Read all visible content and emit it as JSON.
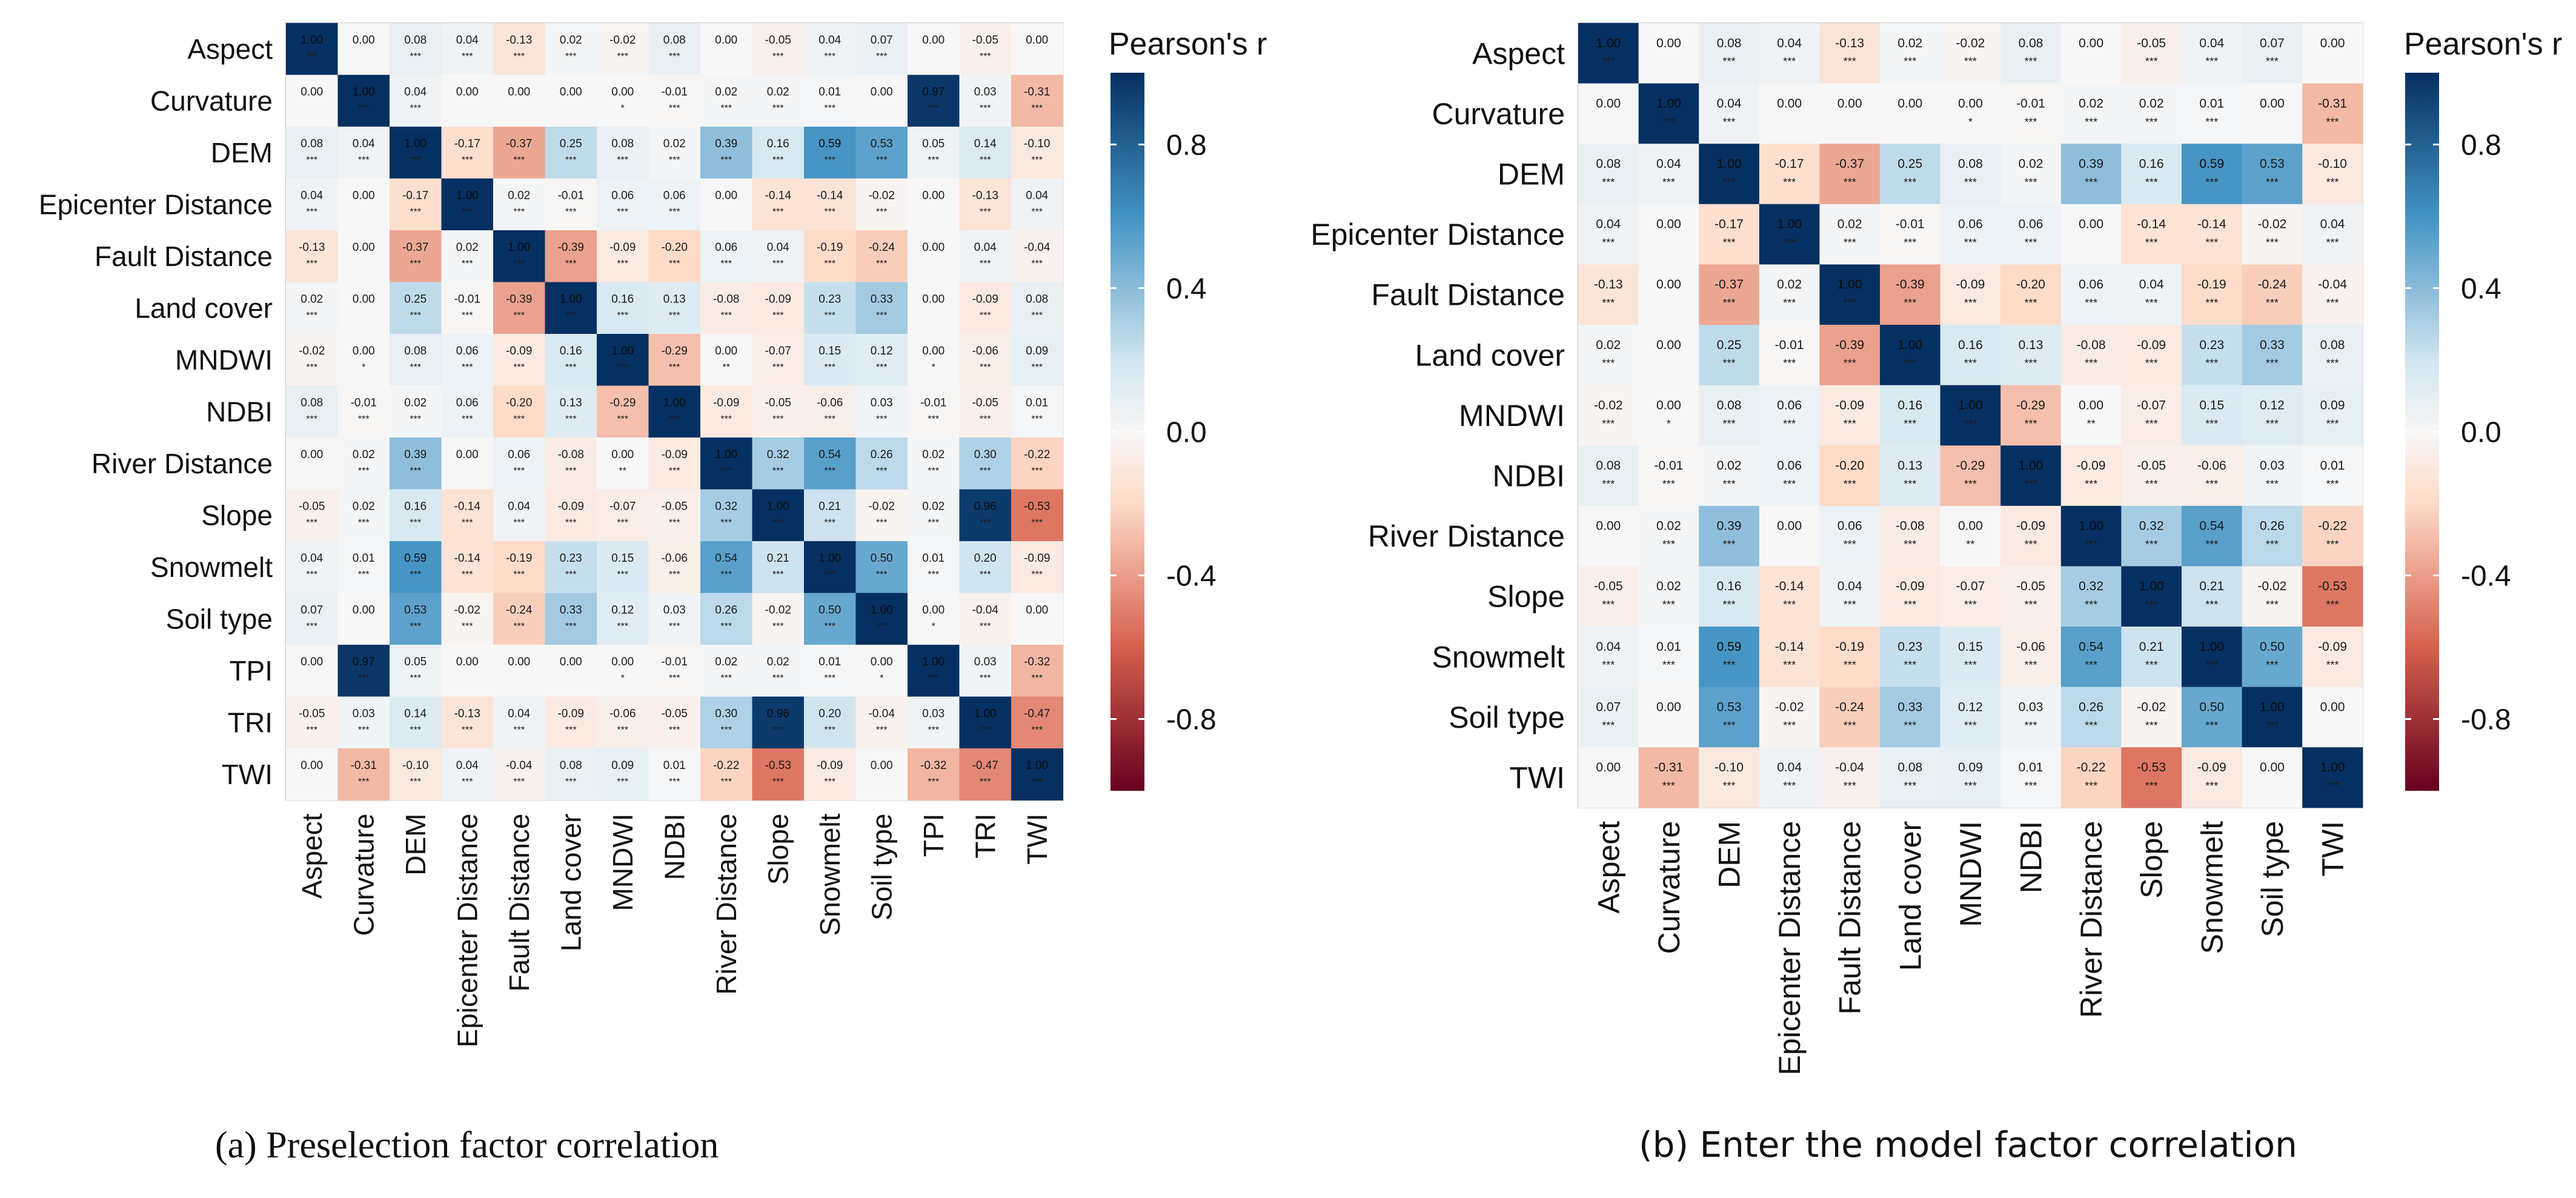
{
  "chart_data": [
    {
      "type": "heatmap",
      "panel": "a",
      "caption": "(a) Preselection factor correlation",
      "variables": [
        "Aspect",
        "Curvature",
        "DEM",
        "Epicenter Distance",
        "Fault Distance",
        "Land cover",
        "MNDWI",
        "NDBI",
        "River Distance",
        "Slope",
        "Snowmelt",
        "Soil type",
        "TPI",
        "TRI",
        "TWI"
      ],
      "values": [
        [
          1.0,
          0.0,
          0.08,
          0.04,
          -0.13,
          0.02,
          -0.02,
          0.08,
          0.0,
          -0.05,
          0.04,
          0.07,
          0.0,
          -0.05,
          0.0
        ],
        [
          0.0,
          1.0,
          0.04,
          0.0,
          0.0,
          0.0,
          0.0,
          -0.01,
          0.02,
          0.02,
          0.01,
          0.0,
          0.97,
          0.03,
          -0.31
        ],
        [
          0.08,
          0.04,
          1.0,
          -0.17,
          -0.37,
          0.25,
          0.08,
          0.02,
          0.39,
          0.16,
          0.59,
          0.53,
          0.05,
          0.14,
          -0.1
        ],
        [
          0.04,
          0.0,
          -0.17,
          1.0,
          0.02,
          -0.01,
          0.06,
          0.06,
          0.0,
          -0.14,
          -0.14,
          -0.02,
          0.0,
          -0.13,
          0.04
        ],
        [
          -0.13,
          0.0,
          -0.37,
          0.02,
          1.0,
          -0.39,
          -0.09,
          -0.2,
          0.06,
          0.04,
          -0.19,
          -0.24,
          0.0,
          0.04,
          -0.04
        ],
        [
          0.02,
          0.0,
          0.25,
          -0.01,
          -0.39,
          1.0,
          0.16,
          0.13,
          -0.08,
          -0.09,
          0.23,
          0.33,
          0.0,
          -0.09,
          0.08
        ],
        [
          -0.02,
          0.0,
          0.08,
          0.06,
          -0.09,
          0.16,
          1.0,
          -0.29,
          0.0,
          -0.07,
          0.15,
          0.12,
          0.0,
          -0.06,
          0.09
        ],
        [
          0.08,
          -0.01,
          0.02,
          0.06,
          -0.2,
          0.13,
          -0.29,
          1.0,
          -0.09,
          -0.05,
          -0.06,
          0.03,
          -0.01,
          -0.05,
          0.01
        ],
        [
          0.0,
          0.02,
          0.39,
          0.0,
          0.06,
          -0.08,
          0.0,
          -0.09,
          1.0,
          0.32,
          0.54,
          0.26,
          0.02,
          0.3,
          -0.22
        ],
        [
          -0.05,
          0.02,
          0.16,
          -0.14,
          0.04,
          -0.09,
          -0.07,
          -0.05,
          0.32,
          1.0,
          0.21,
          -0.02,
          0.02,
          0.96,
          -0.53
        ],
        [
          0.04,
          0.01,
          0.59,
          -0.14,
          -0.19,
          0.23,
          0.15,
          -0.06,
          0.54,
          0.21,
          1.0,
          0.5,
          0.01,
          0.2,
          -0.09
        ],
        [
          0.07,
          0.0,
          0.53,
          -0.02,
          -0.24,
          0.33,
          0.12,
          0.03,
          0.26,
          -0.02,
          0.5,
          1.0,
          0.0,
          -0.04,
          0.0
        ],
        [
          0.0,
          0.97,
          0.05,
          0.0,
          0.0,
          0.0,
          0.0,
          -0.01,
          0.02,
          0.02,
          0.01,
          0.0,
          1.0,
          0.03,
          -0.32
        ],
        [
          -0.05,
          0.03,
          0.14,
          -0.13,
          0.04,
          -0.09,
          -0.06,
          -0.05,
          0.3,
          0.96,
          0.2,
          -0.04,
          0.03,
          1.0,
          -0.47
        ],
        [
          0.0,
          -0.31,
          -0.1,
          0.04,
          -0.04,
          0.08,
          0.09,
          0.01,
          -0.22,
          -0.53,
          -0.09,
          0.0,
          -0.32,
          -0.47,
          1.0
        ]
      ],
      "significance": [
        [
          "***",
          "",
          "***",
          "***",
          "***",
          "***",
          "***",
          "***",
          "",
          "***",
          "***",
          "***",
          "",
          "***",
          ""
        ],
        [
          "",
          "***",
          "***",
          "",
          "",
          "",
          "*",
          "***",
          "***",
          "***",
          "***",
          "",
          "***",
          "***",
          "***"
        ],
        [
          "***",
          "***",
          "***",
          "***",
          "***",
          "***",
          "***",
          "***",
          "***",
          "***",
          "***",
          "***",
          "***",
          "***",
          "***"
        ],
        [
          "***",
          "",
          "***",
          "***",
          "***",
          "***",
          "***",
          "***",
          "",
          "***",
          "***",
          "***",
          "",
          "***",
          "***"
        ],
        [
          "***",
          "",
          "***",
          "***",
          "***",
          "***",
          "***",
          "***",
          "***",
          "***",
          "***",
          "***",
          "",
          "***",
          "***"
        ],
        [
          "***",
          "",
          "***",
          "***",
          "***",
          "***",
          "***",
          "***",
          "***",
          "***",
          "***",
          "***",
          "",
          "***",
          "***"
        ],
        [
          "***",
          "*",
          "***",
          "***",
          "***",
          "***",
          "***",
          "***",
          "**",
          "***",
          "***",
          "***",
          "*",
          "***",
          "***"
        ],
        [
          "***",
          "***",
          "***",
          "***",
          "***",
          "***",
          "***",
          "***",
          "***",
          "***",
          "***",
          "***",
          "***",
          "***",
          "***"
        ],
        [
          "",
          "***",
          "***",
          "",
          "***",
          "***",
          "**",
          "***",
          "***",
          "***",
          "***",
          "***",
          "***",
          "***",
          "***"
        ],
        [
          "***",
          "***",
          "***",
          "***",
          "***",
          "***",
          "***",
          "***",
          "***",
          "***",
          "***",
          "***",
          "***",
          "***",
          "***"
        ],
        [
          "***",
          "***",
          "***",
          "***",
          "***",
          "***",
          "***",
          "***",
          "***",
          "***",
          "***",
          "***",
          "***",
          "***",
          "***"
        ],
        [
          "***",
          "",
          "***",
          "***",
          "***",
          "***",
          "***",
          "***",
          "***",
          "***",
          "***",
          "***",
          "*",
          "***",
          ""
        ],
        [
          "",
          "***",
          "***",
          "",
          "",
          "",
          "*",
          "***",
          "***",
          "***",
          "***",
          "*",
          "***",
          "***",
          "***"
        ],
        [
          "***",
          "***",
          "***",
          "***",
          "***",
          "***",
          "***",
          "***",
          "***",
          "***",
          "***",
          "***",
          "***",
          "***",
          "***"
        ],
        [
          "",
          "***",
          "***",
          "***",
          "***",
          "***",
          "***",
          "***",
          "***",
          "***",
          "***",
          "",
          "***",
          "***",
          "***"
        ]
      ],
      "legend_title": "Pearson's r",
      "color_range": [
        -1,
        1
      ],
      "colorbar_ticks": [
        0.8,
        0.4,
        0.0,
        -0.4,
        -0.8
      ],
      "colorbar_tick_labels": [
        "0.8",
        "0.4",
        "0.0",
        "-0.4",
        "-0.8"
      ],
      "legend_position": "right"
    },
    {
      "type": "heatmap",
      "panel": "b",
      "caption": "(b) Enter the model factor correlation",
      "variables": [
        "Aspect",
        "Curvature",
        "DEM",
        "Epicenter Distance",
        "Fault Distance",
        "Land cover",
        "MNDWI",
        "NDBI",
        "River Distance",
        "Slope",
        "Snowmelt",
        "Soil type",
        "TWI"
      ],
      "values": [
        [
          1.0,
          0.0,
          0.08,
          0.04,
          -0.13,
          0.02,
          -0.02,
          0.08,
          0.0,
          -0.05,
          0.04,
          0.07,
          0.0
        ],
        [
          0.0,
          1.0,
          0.04,
          0.0,
          0.0,
          0.0,
          0.0,
          -0.01,
          0.02,
          0.02,
          0.01,
          0.0,
          -0.31
        ],
        [
          0.08,
          0.04,
          1.0,
          -0.17,
          -0.37,
          0.25,
          0.08,
          0.02,
          0.39,
          0.16,
          0.59,
          0.53,
          -0.1
        ],
        [
          0.04,
          0.0,
          -0.17,
          1.0,
          0.02,
          -0.01,
          0.06,
          0.06,
          0.0,
          -0.14,
          -0.14,
          -0.02,
          0.04
        ],
        [
          -0.13,
          0.0,
          -0.37,
          0.02,
          1.0,
          -0.39,
          -0.09,
          -0.2,
          0.06,
          0.04,
          -0.19,
          -0.24,
          -0.04
        ],
        [
          0.02,
          0.0,
          0.25,
          -0.01,
          -0.39,
          1.0,
          0.16,
          0.13,
          -0.08,
          -0.09,
          0.23,
          0.33,
          0.08
        ],
        [
          -0.02,
          0.0,
          0.08,
          0.06,
          -0.09,
          0.16,
          1.0,
          -0.29,
          0.0,
          -0.07,
          0.15,
          0.12,
          0.09
        ],
        [
          0.08,
          -0.01,
          0.02,
          0.06,
          -0.2,
          0.13,
          -0.29,
          1.0,
          -0.09,
          -0.05,
          -0.06,
          0.03,
          0.01
        ],
        [
          0.0,
          0.02,
          0.39,
          0.0,
          0.06,
          -0.08,
          0.0,
          -0.09,
          1.0,
          0.32,
          0.54,
          0.26,
          -0.22
        ],
        [
          -0.05,
          0.02,
          0.16,
          -0.14,
          0.04,
          -0.09,
          -0.07,
          -0.05,
          0.32,
          1.0,
          0.21,
          -0.02,
          -0.53
        ],
        [
          0.04,
          0.01,
          0.59,
          -0.14,
          -0.19,
          0.23,
          0.15,
          -0.06,
          0.54,
          0.21,
          1.0,
          0.5,
          -0.09
        ],
        [
          0.07,
          0.0,
          0.53,
          -0.02,
          -0.24,
          0.33,
          0.12,
          0.03,
          0.26,
          -0.02,
          0.5,
          1.0,
          0.0
        ],
        [
          0.0,
          -0.31,
          -0.1,
          0.04,
          -0.04,
          0.08,
          0.09,
          0.01,
          -0.22,
          -0.53,
          -0.09,
          0.0,
          1.0
        ]
      ],
      "significance": [
        [
          "***",
          "",
          "***",
          "***",
          "***",
          "***",
          "***",
          "***",
          "",
          "***",
          "***",
          "***",
          ""
        ],
        [
          "",
          "***",
          "***",
          "",
          "",
          "",
          "*",
          "***",
          "***",
          "***",
          "***",
          "",
          "***"
        ],
        [
          "***",
          "***",
          "***",
          "***",
          "***",
          "***",
          "***",
          "***",
          "***",
          "***",
          "***",
          "***",
          "***"
        ],
        [
          "***",
          "",
          "***",
          "***",
          "***",
          "***",
          "***",
          "***",
          "",
          "***",
          "***",
          "***",
          "***"
        ],
        [
          "***",
          "",
          "***",
          "***",
          "***",
          "***",
          "***",
          "***",
          "***",
          "***",
          "***",
          "***",
          "***"
        ],
        [
          "***",
          "",
          "***",
          "***",
          "***",
          "***",
          "***",
          "***",
          "***",
          "***",
          "***",
          "***",
          "***"
        ],
        [
          "***",
          "*",
          "***",
          "***",
          "***",
          "***",
          "***",
          "***",
          "**",
          "***",
          "***",
          "***",
          "***"
        ],
        [
          "***",
          "***",
          "***",
          "***",
          "***",
          "***",
          "***",
          "***",
          "***",
          "***",
          "***",
          "***",
          "***"
        ],
        [
          "",
          "***",
          "***",
          "",
          "***",
          "***",
          "**",
          "***",
          "***",
          "***",
          "***",
          "***",
          "***"
        ],
        [
          "***",
          "***",
          "***",
          "***",
          "***",
          "***",
          "***",
          "***",
          "***",
          "***",
          "***",
          "***",
          "***"
        ],
        [
          "***",
          "***",
          "***",
          "***",
          "***",
          "***",
          "***",
          "***",
          "***",
          "***",
          "***",
          "***",
          "***"
        ],
        [
          "***",
          "",
          "***",
          "***",
          "***",
          "***",
          "***",
          "***",
          "***",
          "***",
          "***",
          "***",
          ""
        ],
        [
          "",
          "***",
          "***",
          "***",
          "***",
          "***",
          "***",
          "***",
          "***",
          "***",
          "***",
          "",
          "***"
        ]
      ],
      "legend_title": "Pearson's r",
      "color_range": [
        -1,
        1
      ],
      "colorbar_ticks": [
        0.8,
        0.4,
        0.0,
        -0.4,
        -0.8
      ],
      "colorbar_tick_labels": [
        "0.8",
        "0.4",
        "0.0",
        "-0.4",
        "-0.8"
      ],
      "legend_position": "right"
    }
  ],
  "colors": {
    "strong_negative": "#67001f",
    "negative": "#d6604d",
    "light_negative": "#fddbc7",
    "neutral": "#f7f7f7",
    "light_positive": "#d1e5f0",
    "positive": "#4393c3",
    "strong_positive": "#053061"
  }
}
